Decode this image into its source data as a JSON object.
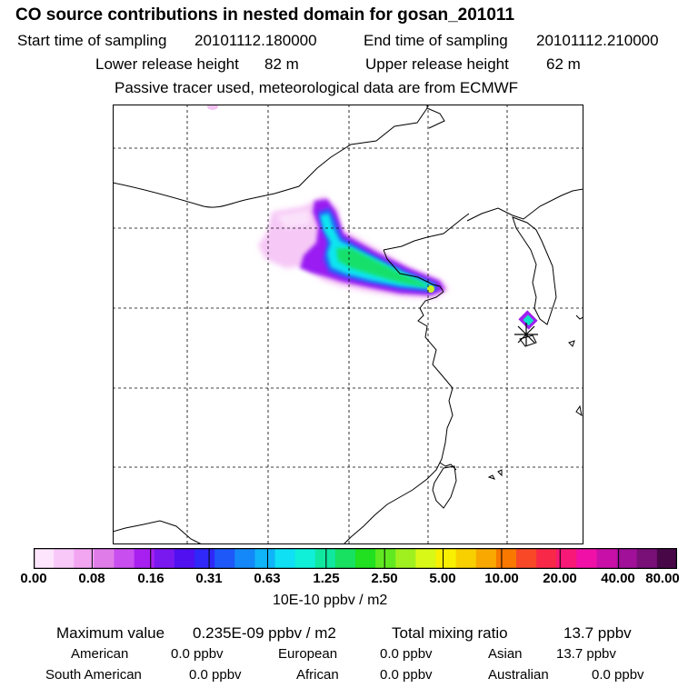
{
  "header": {
    "title": "CO  source contributions in nested domain for gosan_201011",
    "start_label": "Start time of sampling",
    "start_value": "20101112.180000",
    "end_label": "End time of sampling",
    "end_value": "20101112.210000",
    "lower_label": "Lower release height",
    "lower_value": "82 m",
    "upper_label": "Upper release height",
    "upper_value": "62 m",
    "note": "Passive tracer used, meteorological data are from ECMWF"
  },
  "map": {
    "receptor_marker": "asterisk-receptor-icon",
    "frame_color": "#000000",
    "grid_color": "#000000"
  },
  "colorbar": {
    "colors": [
      "#fde6fd",
      "#f8c8f8",
      "#f2a6f2",
      "#e07ce8",
      "#c94ef0",
      "#a820f0",
      "#7a18f0",
      "#5010f0",
      "#3028f8",
      "#1e58f8",
      "#1488f8",
      "#10b4f8",
      "#10e0f4",
      "#10f0d8",
      "#10e8a0",
      "#18e060",
      "#20e020",
      "#60e820",
      "#a0f020",
      "#d8f818",
      "#f8f000",
      "#f8d000",
      "#f8a800",
      "#f87800",
      "#f84828",
      "#f82848",
      "#f81878",
      "#f010a8",
      "#c810a8",
      "#a01098",
      "#781078",
      "#480848"
    ],
    "tick_labels": [
      "0.00",
      "0.08",
      "0.16",
      "0.31",
      "0.63",
      "1.25",
      "2.50",
      "5.00",
      "10.00",
      "20.00",
      "40.00",
      "80.00"
    ],
    "units": "10E-10 ppbv / m2"
  },
  "stats": {
    "max_label": "Maximum value",
    "max_value": "0.235E-09 ppbv / m2",
    "total_label": "Total mixing ratio",
    "total_value": "13.7 ppbv",
    "regions": [
      {
        "name": "American",
        "value": "0.0 ppbv"
      },
      {
        "name": "European",
        "value": "0.0 ppbv"
      },
      {
        "name": "Asian",
        "value": "13.7 ppbv"
      },
      {
        "name": "South American",
        "value": "0.0 ppbv"
      },
      {
        "name": "African",
        "value": "0.0 ppbv"
      },
      {
        "name": "Australian",
        "value": "0.0 ppbv"
      }
    ]
  }
}
